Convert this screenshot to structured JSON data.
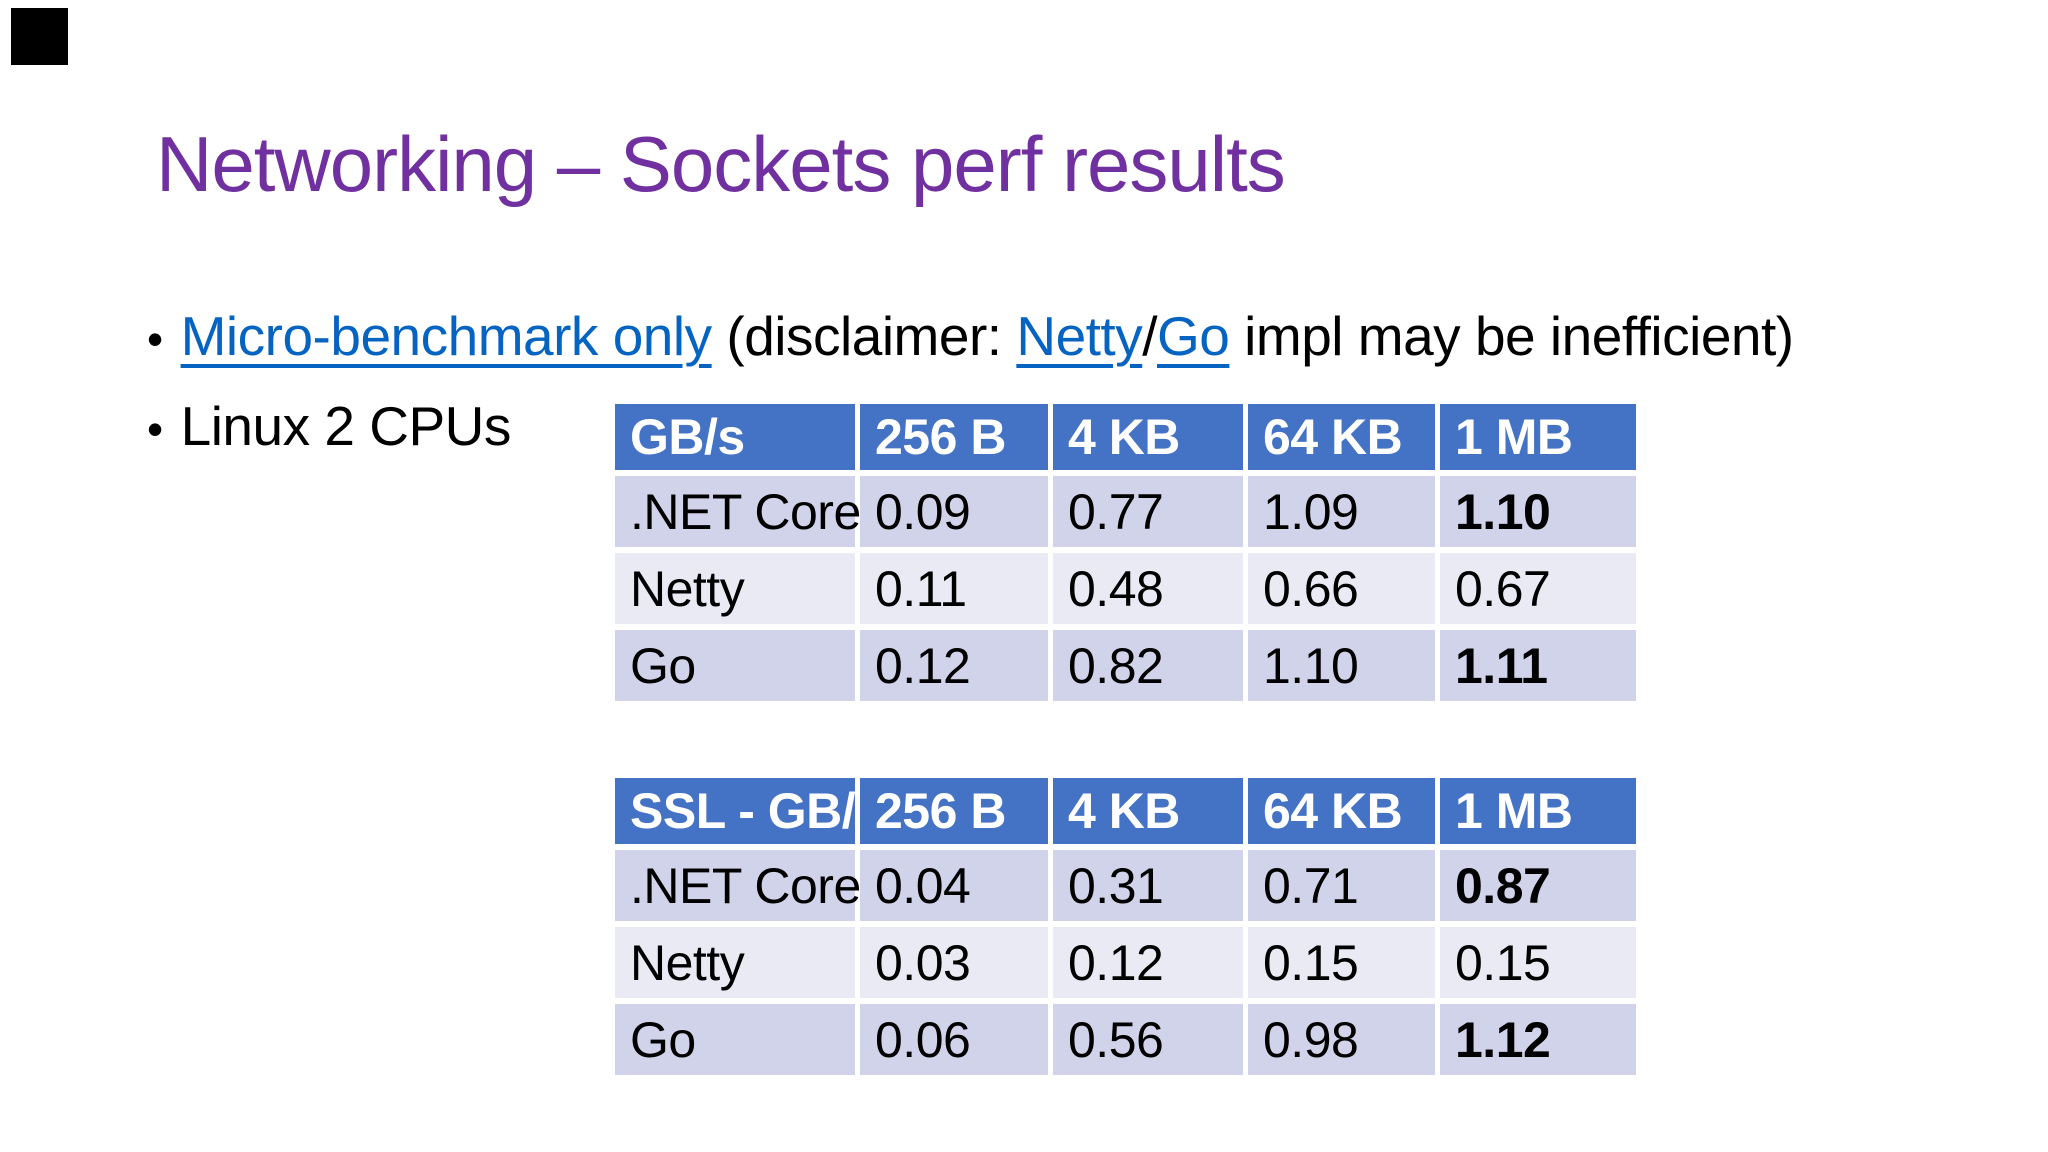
{
  "slide": {
    "title": "Networking – Sockets perf results",
    "bullet_marker": "•",
    "bullets": [
      {
        "segments": [
          {
            "text": "Micro-benchmark only",
            "link": true
          },
          {
            "text": " (disclaimer: ",
            "link": false
          },
          {
            "text": "Netty",
            "link": true
          },
          {
            "text": "/",
            "link": false
          },
          {
            "text": "Go",
            "link": true
          },
          {
            "text": " impl may be inefficient)",
            "link": false
          }
        ]
      },
      {
        "segments": [
          {
            "text": "Linux 2 CPUs",
            "link": false
          }
        ]
      }
    ]
  },
  "tables": [
    {
      "headers": [
        "GB/s",
        "256 B",
        "4 KB",
        "64 KB",
        "1 MB"
      ],
      "rows": [
        {
          "label": ".NET Core",
          "values": [
            "0.09",
            "0.77",
            "1.09",
            "1.10"
          ]
        },
        {
          "label": "Netty",
          "values": [
            "0.11",
            "0.48",
            "0.66",
            "0.67"
          ]
        },
        {
          "label": "Go",
          "values": [
            "0.12",
            "0.82",
            "1.10",
            "1.11"
          ]
        }
      ]
    },
    {
      "headers": [
        "SSL - GB/s",
        "256 B",
        "4 KB",
        "64 KB",
        "1 MB"
      ],
      "rows": [
        {
          "label": ".NET Core",
          "values": [
            "0.04",
            "0.31",
            "0.71",
            "0.87"
          ]
        },
        {
          "label": "Netty",
          "values": [
            "0.03",
            "0.12",
            "0.15",
            "0.15"
          ]
        },
        {
          "label": "Go",
          "values": [
            "0.06",
            "0.56",
            "0.98",
            "1.12"
          ]
        }
      ]
    }
  ],
  "chart_data": [
    {
      "type": "table",
      "title": "GB/s",
      "columns": [
        "GB/s",
        "256 B",
        "4 KB",
        "64 KB",
        "1 MB"
      ],
      "rows": [
        [
          ".NET Core",
          0.09,
          0.77,
          1.09,
          1.1
        ],
        [
          "Netty",
          0.11,
          0.48,
          0.66,
          0.67
        ],
        [
          "Go",
          0.12,
          0.82,
          1.1,
          1.11
        ]
      ]
    },
    {
      "type": "table",
      "title": "SSL - GB/s",
      "columns": [
        "SSL - GB/s",
        "256 B",
        "4 KB",
        "64 KB",
        "1 MB"
      ],
      "rows": [
        [
          ".NET Core",
          0.04,
          0.31,
          0.71,
          0.87
        ],
        [
          "Netty",
          0.03,
          0.12,
          0.15,
          0.15
        ],
        [
          "Go",
          0.06,
          0.56,
          0.98,
          1.12
        ]
      ]
    }
  ],
  "colors": {
    "title": "#7030A0",
    "link": "#0563C1",
    "table_header_bg": "#4472C4",
    "table_band_dark": "#d0d3ea",
    "table_band_light": "#e9eaf4",
    "corner_marker": "#000000",
    "text": "#000000",
    "background": "#ffffff"
  }
}
